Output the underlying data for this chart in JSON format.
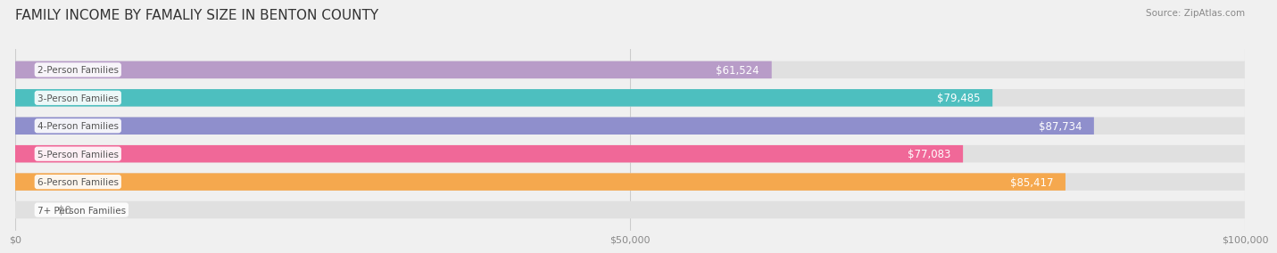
{
  "title": "FAMILY INCOME BY FAMALIY SIZE IN BENTON COUNTY",
  "source": "Source: ZipAtlas.com",
  "categories": [
    "2-Person Families",
    "3-Person Families",
    "4-Person Families",
    "5-Person Families",
    "6-Person Families",
    "7+ Person Families"
  ],
  "values": [
    61524,
    79485,
    87734,
    77083,
    85417,
    0
  ],
  "bar_colors": [
    "#b89cc8",
    "#4dbfbf",
    "#8f8fcc",
    "#f06898",
    "#f5a84e",
    "#f0b8b8"
  ],
  "label_texts": [
    "$61,524",
    "$79,485",
    "$87,734",
    "$77,083",
    "$85,417",
    "$0"
  ],
  "xlim": [
    0,
    100000
  ],
  "xticks": [
    0,
    50000,
    100000
  ],
  "xticklabels": [
    "$0",
    "$50,000",
    "$100,000"
  ],
  "bar_height": 0.62,
  "background_color": "#f0f0f0",
  "bar_bg_color": "#e0e0e0",
  "title_fontsize": 11,
  "label_fontsize": 8.5,
  "category_fontsize": 7.5,
  "tick_fontsize": 8
}
